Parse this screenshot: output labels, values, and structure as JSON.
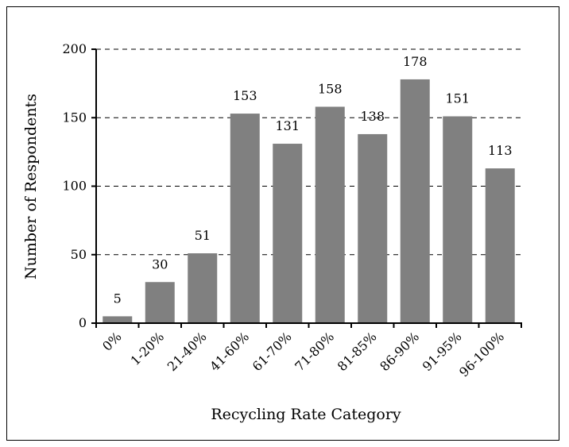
{
  "chart_data": {
    "type": "bar",
    "title": "",
    "xlabel": "Recycling Rate Category",
    "ylabel": "Number of Respondents",
    "categories": [
      "0%",
      "1-20%",
      "21-40%",
      "41-60%",
      "61-70%",
      "71-80%",
      "81-85%",
      "86-90%",
      "91-95%",
      "96-100%"
    ],
    "values": [
      5,
      30,
      51,
      153,
      131,
      158,
      138,
      178,
      151,
      113
    ],
    "ylim": [
      0,
      200
    ],
    "yticks": [
      0,
      50,
      100,
      150,
      200
    ],
    "grid": "horizontal dashed",
    "legend": "none",
    "colors": {
      "bar": "#808080",
      "axis": "#000000",
      "grid": "#000000"
    }
  }
}
